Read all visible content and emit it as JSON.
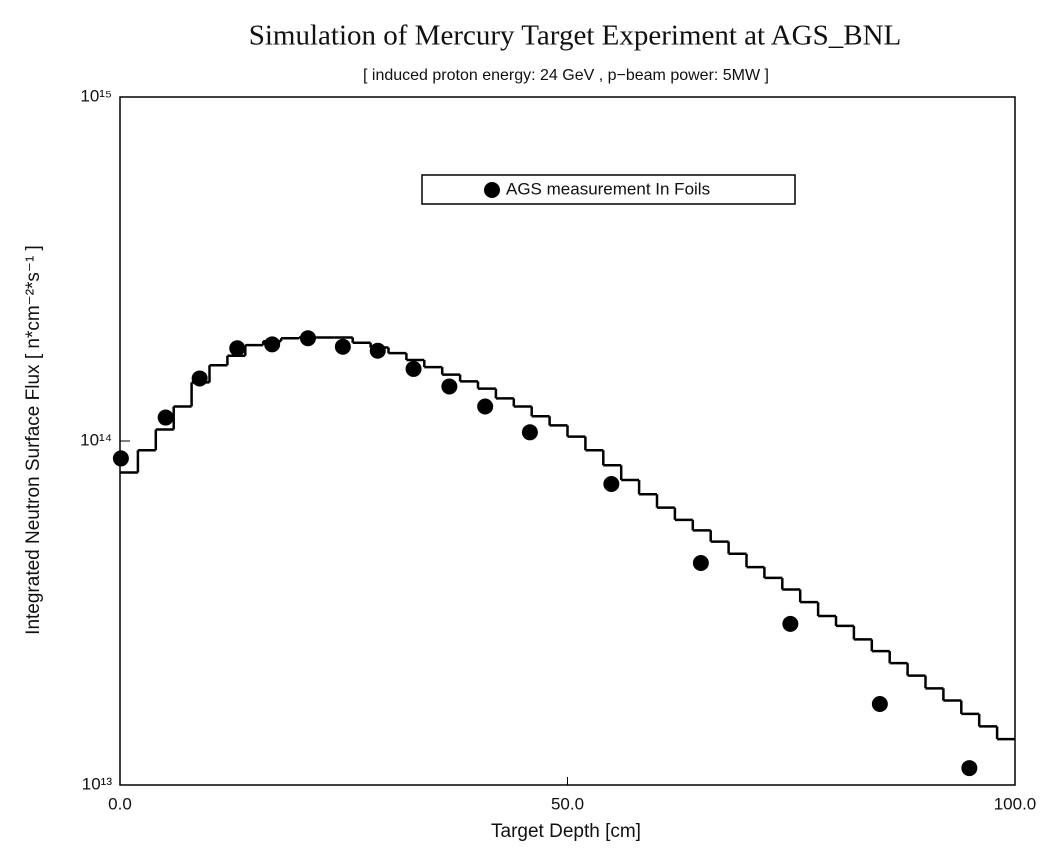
{
  "chart_data": {
    "type": "scatter",
    "title": "Simulation of Mercury Target Experiment at AGS_BNL",
    "subtitle": "[ induced proton energy: 24 GeV   , p−beam power: 5MW ]",
    "xlabel": "Target Depth [cm]",
    "ylabel": "Integrated Neutron Surface Flux  [ n*cm⁻²*s⁻¹ ]",
    "xlim": [
      0,
      100
    ],
    "xticks": [
      {
        "value": 0,
        "label": "0.0"
      },
      {
        "value": 50,
        "label": "50.0"
      },
      {
        "value": 100,
        "label": "100.0"
      }
    ],
    "ylim": [
      10000000000000.0,
      1000000000000000.0
    ],
    "yticks": [
      {
        "value": 10000000000000.0,
        "label": "10¹³"
      },
      {
        "value": 100000000000000.0,
        "label": "10¹⁴"
      },
      {
        "value": 1000000000000000.0,
        "label": "10¹⁵"
      }
    ],
    "ylog": true,
    "grid": false,
    "legend": "top",
    "series": [
      {
        "type": "step",
        "color": "#000000",
        "bins": [
          0,
          2,
          4,
          6,
          8,
          10,
          12,
          14,
          16,
          18,
          20,
          22,
          24,
          26,
          28,
          30,
          32,
          34,
          36,
          38,
          40,
          42,
          44,
          46,
          48,
          50,
          52,
          54,
          56,
          58,
          60,
          62,
          64,
          66,
          68,
          70,
          72,
          74,
          76,
          78,
          80,
          82,
          84,
          86,
          88,
          90,
          92,
          94,
          96,
          98,
          100
        ],
        "values": [
          81000000000000.0,
          94000000000000.0,
          108000000000000.0,
          126000000000000.0,
          148000000000000.0,
          166000000000000.0,
          177000000000000.0,
          190000000000000.0,
          195000000000000.0,
          199000000000000.0,
          200000000000000.0,
          200000000000000.0,
          200000000000000.0,
          193000000000000.0,
          187000000000000.0,
          180000000000000.0,
          172000000000000.0,
          164000000000000.0,
          156000000000000.0,
          149000000000000.0,
          142000000000000.0,
          133000000000000.0,
          126000000000000.0,
          118000000000000.0,
          111000000000000.0,
          103000000000000.0,
          94000000000000.0,
          85000000000000.0,
          77000000000000.0,
          70000000000000.0,
          64000000000000.0,
          59000000000000.0,
          55000000000000.0,
          51000000000000.0,
          47000000000000.0,
          43000000000000.0,
          40000000000000.0,
          37000000000000.0,
          34000000000000.0,
          31000000000000.0,
          29000000000000.0,
          26500000000000.0,
          24500000000000.0,
          22600000000000.0,
          20800000000000.0,
          19100000000000.0,
          17600000000000.0,
          16100000000000.0,
          14800000000000.0,
          13600000000000.0
        ]
      },
      {
        "type": "scatter",
        "name": "AGS measurement In Foils",
        "color": "#000000",
        "x": [
          0.1,
          5.1,
          8.9,
          13.1,
          17.0,
          21.0,
          24.9,
          28.8,
          32.8,
          36.8,
          40.8,
          45.8,
          54.9,
          64.9,
          74.9,
          84.9,
          94.9
        ],
        "values": [
          89000000000000.0,
          117000000000000.0,
          152000000000000.0,
          186000000000000.0,
          191000000000000.0,
          199000000000000.0,
          188000000000000.0,
          183000000000000.0,
          162000000000000.0,
          144000000000000.0,
          126000000000000.0,
          106000000000000.0,
          75000000000000.0,
          44200000000000.0,
          29400000000000.0,
          17200000000000.0,
          11200000000000.0
        ]
      }
    ]
  }
}
